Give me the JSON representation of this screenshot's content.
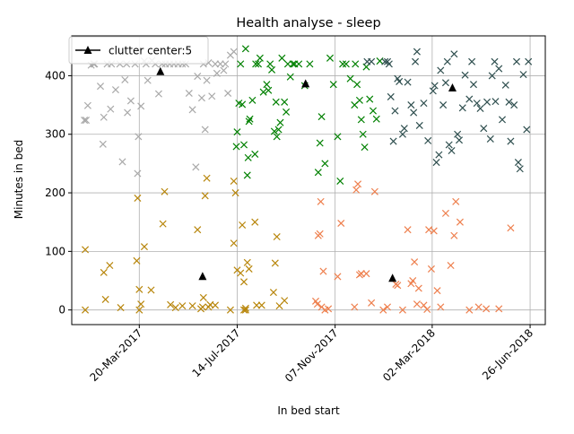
{
  "chart_data": {
    "type": "scatter",
    "title": "Health analyse - sleep",
    "xlabel": "In bed start",
    "ylabel": "Minutes in bed",
    "x_axis_type": "date",
    "xlim": [
      "2016-12-30",
      "2018-07-14"
    ],
    "ylim": [
      -25,
      468
    ],
    "x_tick_labels": [
      "20-Mar-2017",
      "14-Jul-2017",
      "07-Nov-2017",
      "02-Mar-2018",
      "26-Jun-2018"
    ],
    "x_tick_values": [
      "2017-03-20",
      "2017-07-14",
      "2017-11-07",
      "2018-03-02",
      "2018-06-26"
    ],
    "y_ticks": [
      0,
      100,
      200,
      300,
      400
    ],
    "grid": true,
    "legend": {
      "position": "top-left",
      "label": "clutter center:5",
      "marker": "triangle",
      "color": "#000000"
    },
    "marker": "x",
    "series": [
      {
        "color": "#a9a9a9",
        "points": [
          [
            "2017-01-14",
            324
          ],
          [
            "2017-01-16",
            324
          ],
          [
            "2017-01-18",
            349
          ],
          [
            "2017-01-22",
            418
          ],
          [
            "2017-01-26",
            420
          ],
          [
            "2017-02-02",
            382
          ],
          [
            "2017-02-05",
            283
          ],
          [
            "2017-02-06",
            329
          ],
          [
            "2017-02-10",
            420
          ],
          [
            "2017-02-14",
            343
          ],
          [
            "2017-02-20",
            376
          ],
          [
            "2017-02-28",
            253
          ],
          [
            "2017-03-03",
            393
          ],
          [
            "2017-03-06",
            337
          ],
          [
            "2017-03-10",
            357
          ],
          [
            "2017-03-15",
            420
          ],
          [
            "2017-03-18",
            233
          ],
          [
            "2017-03-19",
            296
          ],
          [
            "2017-03-22",
            348
          ],
          [
            "2017-03-26",
            425
          ],
          [
            "2017-03-30",
            392
          ],
          [
            "2017-04-04",
            426
          ],
          [
            "2017-04-12",
            369
          ],
          [
            "2017-04-20",
            420
          ],
          [
            "2017-04-30",
            420
          ],
          [
            "2017-05-10",
            420
          ],
          [
            "2017-05-18",
            370
          ],
          [
            "2017-05-22",
            342
          ],
          [
            "2017-05-26",
            244
          ],
          [
            "2017-05-28",
            399
          ],
          [
            "2017-06-02",
            362
          ],
          [
            "2017-06-06",
            308
          ],
          [
            "2017-06-08",
            392
          ],
          [
            "2017-06-10",
            422
          ],
          [
            "2017-06-14",
            365
          ],
          [
            "2017-06-20",
            404
          ],
          [
            "2017-06-24",
            420
          ],
          [
            "2017-06-28",
            409
          ],
          [
            "2017-07-03",
            370
          ],
          [
            "2017-07-06",
            435
          ],
          [
            "2017-07-10",
            441
          ],
          [
            "2017-01-25",
            420
          ],
          [
            "2017-02-15",
            420
          ],
          [
            "2017-02-25",
            420
          ],
          [
            "2017-03-05",
            420
          ],
          [
            "2017-03-28",
            420
          ],
          [
            "2017-04-08",
            420
          ],
          [
            "2017-04-16",
            420
          ],
          [
            "2017-04-25",
            420
          ],
          [
            "2017-05-05",
            420
          ],
          [
            "2017-05-14",
            420
          ],
          [
            "2017-06-04",
            420
          ],
          [
            "2017-06-18",
            420
          ],
          [
            "2017-06-30",
            420
          ]
        ]
      },
      {
        "color": "#008000",
        "points": [
          [
            "2017-07-13",
            279
          ],
          [
            "2017-07-14",
            304
          ],
          [
            "2017-07-16",
            353
          ],
          [
            "2017-07-20",
            351
          ],
          [
            "2017-07-22",
            282
          ],
          [
            "2017-07-24",
            446
          ],
          [
            "2017-07-26",
            230
          ],
          [
            "2017-07-27",
            260
          ],
          [
            "2017-07-28",
            322
          ],
          [
            "2017-07-29",
            326
          ],
          [
            "2017-08-01",
            358
          ],
          [
            "2017-08-04",
            266
          ],
          [
            "2017-08-05",
            420
          ],
          [
            "2017-08-10",
            430
          ],
          [
            "2017-08-14",
            372
          ],
          [
            "2017-08-18",
            385
          ],
          [
            "2017-08-20",
            375
          ],
          [
            "2017-08-24",
            410
          ],
          [
            "2017-08-27",
            305
          ],
          [
            "2017-08-29",
            355
          ],
          [
            "2017-08-30",
            296
          ],
          [
            "2017-09-01",
            308
          ],
          [
            "2017-09-03",
            320
          ],
          [
            "2017-09-05",
            430
          ],
          [
            "2017-09-08",
            355
          ],
          [
            "2017-09-10",
            338
          ],
          [
            "2017-09-12",
            420
          ],
          [
            "2017-09-15",
            398
          ],
          [
            "2017-09-20",
            420
          ],
          [
            "2017-09-25",
            420
          ],
          [
            "2017-10-02",
            383
          ],
          [
            "2017-10-18",
            235
          ],
          [
            "2017-10-20",
            285
          ],
          [
            "2017-10-22",
            330
          ],
          [
            "2017-10-26",
            250
          ],
          [
            "2017-11-01",
            430
          ],
          [
            "2017-11-05",
            385
          ],
          [
            "2017-11-10",
            296
          ],
          [
            "2017-11-13",
            220
          ],
          [
            "2017-11-20",
            420
          ],
          [
            "2017-11-25",
            395
          ],
          [
            "2017-11-30",
            350
          ],
          [
            "2017-12-03",
            385
          ],
          [
            "2017-12-06",
            358
          ],
          [
            "2017-12-08",
            325
          ],
          [
            "2017-12-10",
            300
          ],
          [
            "2017-12-12",
            278
          ],
          [
            "2017-12-14",
            415
          ],
          [
            "2017-12-18",
            360
          ],
          [
            "2017-12-22",
            340
          ],
          [
            "2017-12-26",
            326
          ],
          [
            "2017-12-30",
            425
          ],
          [
            "2017-07-18",
            420
          ],
          [
            "2017-08-08",
            420
          ],
          [
            "2017-08-22",
            420
          ],
          [
            "2017-09-18",
            420
          ],
          [
            "2017-10-08",
            420
          ],
          [
            "2017-11-16",
            420
          ],
          [
            "2017-12-01",
            420
          ]
        ]
      },
      {
        "color": "#2f4f4f",
        "points": [
          [
            "2017-12-15",
            424
          ],
          [
            "2017-12-20",
            424
          ],
          [
            "2018-01-05",
            424
          ],
          [
            "2018-01-10",
            420
          ],
          [
            "2018-01-12",
            364
          ],
          [
            "2018-01-15",
            288
          ],
          [
            "2018-01-17",
            340
          ],
          [
            "2018-01-20",
            395
          ],
          [
            "2018-01-22",
            390
          ],
          [
            "2018-01-26",
            300
          ],
          [
            "2018-01-28",
            310
          ],
          [
            "2018-02-01",
            389
          ],
          [
            "2018-02-05",
            350
          ],
          [
            "2018-02-08",
            337
          ],
          [
            "2018-02-12",
            441
          ],
          [
            "2018-02-15",
            315
          ],
          [
            "2018-02-20",
            353
          ],
          [
            "2018-02-25",
            289
          ],
          [
            "2018-03-03",
            374
          ],
          [
            "2018-03-05",
            383
          ],
          [
            "2018-03-07",
            252
          ],
          [
            "2018-03-10",
            265
          ],
          [
            "2018-03-12",
            409
          ],
          [
            "2018-03-15",
            350
          ],
          [
            "2018-03-18",
            388
          ],
          [
            "2018-03-22",
            282
          ],
          [
            "2018-03-25",
            272
          ],
          [
            "2018-03-28",
            437
          ],
          [
            "2018-04-01",
            300
          ],
          [
            "2018-04-03",
            290
          ],
          [
            "2018-04-07",
            345
          ],
          [
            "2018-04-10",
            401
          ],
          [
            "2018-04-15",
            360
          ],
          [
            "2018-04-20",
            385
          ],
          [
            "2018-04-24",
            353
          ],
          [
            "2018-04-28",
            344
          ],
          [
            "2018-05-02",
            310
          ],
          [
            "2018-05-06",
            355
          ],
          [
            "2018-05-10",
            292
          ],
          [
            "2018-05-12",
            400
          ],
          [
            "2018-05-16",
            356
          ],
          [
            "2018-05-20",
            412
          ],
          [
            "2018-05-24",
            325
          ],
          [
            "2018-05-28",
            384
          ],
          [
            "2018-06-01",
            355
          ],
          [
            "2018-06-03",
            288
          ],
          [
            "2018-06-07",
            350
          ],
          [
            "2018-06-12",
            252
          ],
          [
            "2018-06-14",
            241
          ],
          [
            "2018-06-18",
            402
          ],
          [
            "2018-06-22",
            308
          ],
          [
            "2018-01-08",
            424
          ],
          [
            "2018-02-10",
            424
          ],
          [
            "2018-03-20",
            424
          ],
          [
            "2018-04-18",
            424
          ],
          [
            "2018-05-15",
            424
          ],
          [
            "2018-06-10",
            424
          ],
          [
            "2018-06-24",
            424
          ]
        ]
      },
      {
        "color": "#b8860b",
        "points": [
          [
            "2017-01-15",
            0
          ],
          [
            "2017-01-15",
            103
          ],
          [
            "2017-02-06",
            64
          ],
          [
            "2017-02-08",
            18
          ],
          [
            "2017-02-13",
            76
          ],
          [
            "2017-02-26",
            4
          ],
          [
            "2017-03-17",
            84
          ],
          [
            "2017-03-18",
            191
          ],
          [
            "2017-03-20",
            35
          ],
          [
            "2017-03-22",
            10
          ],
          [
            "2017-03-26",
            108
          ],
          [
            "2017-04-03",
            34
          ],
          [
            "2017-04-17",
            147
          ],
          [
            "2017-04-19",
            202
          ],
          [
            "2017-04-26",
            9
          ],
          [
            "2017-05-02",
            4
          ],
          [
            "2017-05-10",
            7
          ],
          [
            "2017-05-22",
            7
          ],
          [
            "2017-05-28",
            137
          ],
          [
            "2017-06-01",
            2
          ],
          [
            "2017-06-04",
            21
          ],
          [
            "2017-06-06",
            195
          ],
          [
            "2017-06-08",
            225
          ],
          [
            "2017-06-10",
            5
          ],
          [
            "2017-06-12",
            9
          ],
          [
            "2017-06-18",
            8
          ],
          [
            "2017-07-06",
            0
          ],
          [
            "2017-07-10",
            114
          ],
          [
            "2017-07-10",
            220
          ],
          [
            "2017-07-12",
            200
          ],
          [
            "2017-07-14",
            68
          ],
          [
            "2017-07-18",
            63
          ],
          [
            "2017-07-20",
            145
          ],
          [
            "2017-07-22",
            0
          ],
          [
            "2017-07-24",
            3
          ],
          [
            "2017-07-26",
            81
          ],
          [
            "2017-07-28",
            70
          ],
          [
            "2017-08-04",
            150
          ],
          [
            "2017-08-06",
            8
          ],
          [
            "2017-08-12",
            8
          ],
          [
            "2017-08-26",
            30
          ],
          [
            "2017-08-28",
            80
          ],
          [
            "2017-08-30",
            125
          ],
          [
            "2017-09-02",
            7
          ],
          [
            "2017-09-08",
            16
          ],
          [
            "2017-07-22",
            48
          ],
          [
            "2017-03-20",
            0
          ],
          [
            "2017-06-03",
            5
          ],
          [
            "2017-07-24",
            0
          ]
        ]
      },
      {
        "color": "#ee7f4d",
        "points": [
          [
            "2017-10-15",
            15
          ],
          [
            "2017-10-17",
            10
          ],
          [
            "2017-10-18",
            127
          ],
          [
            "2017-10-20",
            130
          ],
          [
            "2017-10-21",
            185
          ],
          [
            "2017-10-22",
            5
          ],
          [
            "2017-10-24",
            66
          ],
          [
            "2017-10-26",
            0
          ],
          [
            "2017-11-10",
            57
          ],
          [
            "2017-11-14",
            148
          ],
          [
            "2017-11-30",
            5
          ],
          [
            "2017-12-02",
            205
          ],
          [
            "2017-12-04",
            215
          ],
          [
            "2017-12-06",
            60
          ],
          [
            "2017-12-08",
            62
          ],
          [
            "2017-12-14",
            62
          ],
          [
            "2017-12-20",
            12
          ],
          [
            "2017-12-24",
            202
          ],
          [
            "2018-01-03",
            0
          ],
          [
            "2018-01-08",
            5
          ],
          [
            "2018-01-18",
            44
          ],
          [
            "2018-01-20",
            42
          ],
          [
            "2018-01-26",
            0
          ],
          [
            "2018-02-01",
            137
          ],
          [
            "2018-02-05",
            45
          ],
          [
            "2018-02-07",
            50
          ],
          [
            "2018-02-09",
            82
          ],
          [
            "2018-02-12",
            10
          ],
          [
            "2018-02-14",
            37
          ],
          [
            "2018-02-24",
            1
          ],
          [
            "2018-02-26",
            137
          ],
          [
            "2018-03-01",
            70
          ],
          [
            "2018-03-04",
            135
          ],
          [
            "2018-03-12",
            5
          ],
          [
            "2018-03-18",
            165
          ],
          [
            "2018-03-24",
            76
          ],
          [
            "2018-03-28",
            127
          ],
          [
            "2018-03-30",
            185
          ],
          [
            "2018-04-04",
            150
          ],
          [
            "2018-04-15",
            0
          ],
          [
            "2018-04-26",
            5
          ],
          [
            "2018-05-05",
            2
          ],
          [
            "2018-05-20",
            2
          ],
          [
            "2018-06-03",
            140
          ],
          [
            "2018-02-20",
            8
          ],
          [
            "2018-03-08",
            33
          ],
          [
            "2017-10-30",
            2
          ]
        ]
      }
    ],
    "cluster_centers": [
      {
        "x": "2017-04-14",
        "y": 408,
        "color": "#000000"
      },
      {
        "x": "2017-10-03",
        "y": 387,
        "color": "#000000"
      },
      {
        "x": "2018-03-26",
        "y": 380,
        "color": "#000000"
      },
      {
        "x": "2017-06-03",
        "y": 58,
        "color": "#000000"
      },
      {
        "x": "2018-01-14",
        "y": 55,
        "color": "#000000"
      }
    ]
  }
}
